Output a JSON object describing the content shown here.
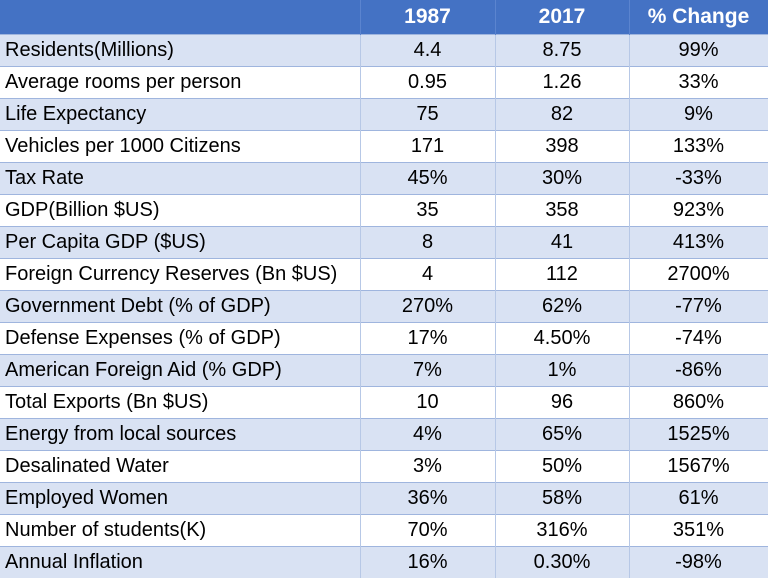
{
  "chart_data": {
    "type": "table",
    "columns": [
      "",
      "1987",
      "2017",
      "% Change"
    ],
    "rows": [
      {
        "label": "Residents(Millions)",
        "y1987": "4.4",
        "y2017": "8.75",
        "change": "99%"
      },
      {
        "label": "Average rooms per person",
        "y1987": "0.95",
        "y2017": "1.26",
        "change": "33%"
      },
      {
        "label": "Life Expectancy",
        "y1987": "75",
        "y2017": "82",
        "change": "9%"
      },
      {
        "label": "Vehicles per 1000 Citizens",
        "y1987": "171",
        "y2017": "398",
        "change": "133%"
      },
      {
        "label": "Tax Rate",
        "y1987": "45%",
        "y2017": "30%",
        "change": "-33%"
      },
      {
        "label": "GDP(Billion $US)",
        "y1987": "35",
        "y2017": "358",
        "change": "923%"
      },
      {
        "label": "Per Capita GDP ($US)",
        "y1987": "8",
        "y2017": "41",
        "change": "413%"
      },
      {
        "label": "Foreign Currency Reserves (Bn $US)",
        "y1987": "4",
        "y2017": "112",
        "change": "2700%"
      },
      {
        "label": "Government Debt (% of GDP)",
        "y1987": "270%",
        "y2017": "62%",
        "change": "-77%"
      },
      {
        "label": "Defense Expenses (% of GDP)",
        "y1987": "17%",
        "y2017": "4.50%",
        "change": "-74%"
      },
      {
        "label": "American Foreign Aid (% GDP)",
        "y1987": "7%",
        "y2017": "1%",
        "change": "-86%"
      },
      {
        "label": "Total Exports (Bn $US)",
        "y1987": "10",
        "y2017": "96",
        "change": "860%"
      },
      {
        "label": "Energy from local sources",
        "y1987": "4%",
        "y2017": "65%",
        "change": "1525%"
      },
      {
        "label": "Desalinated Water",
        "y1987": "3%",
        "y2017": "50%",
        "change": "1567%"
      },
      {
        "label": "Employed Women",
        "y1987": "36%",
        "y2017": "58%",
        "change": "61%"
      },
      {
        "label": "Number of students(K)",
        "y1987": "70%",
        "y2017": "316%",
        "change": "351%"
      },
      {
        "label": "Annual Inflation",
        "y1987": "16%",
        "y2017": "0.30%",
        "change": "-98%"
      }
    ]
  },
  "colors": {
    "header_bg": "#4472c4",
    "header_text": "#ffffff",
    "band_a": "#d9e2f3",
    "band_b": "#ffffff"
  }
}
